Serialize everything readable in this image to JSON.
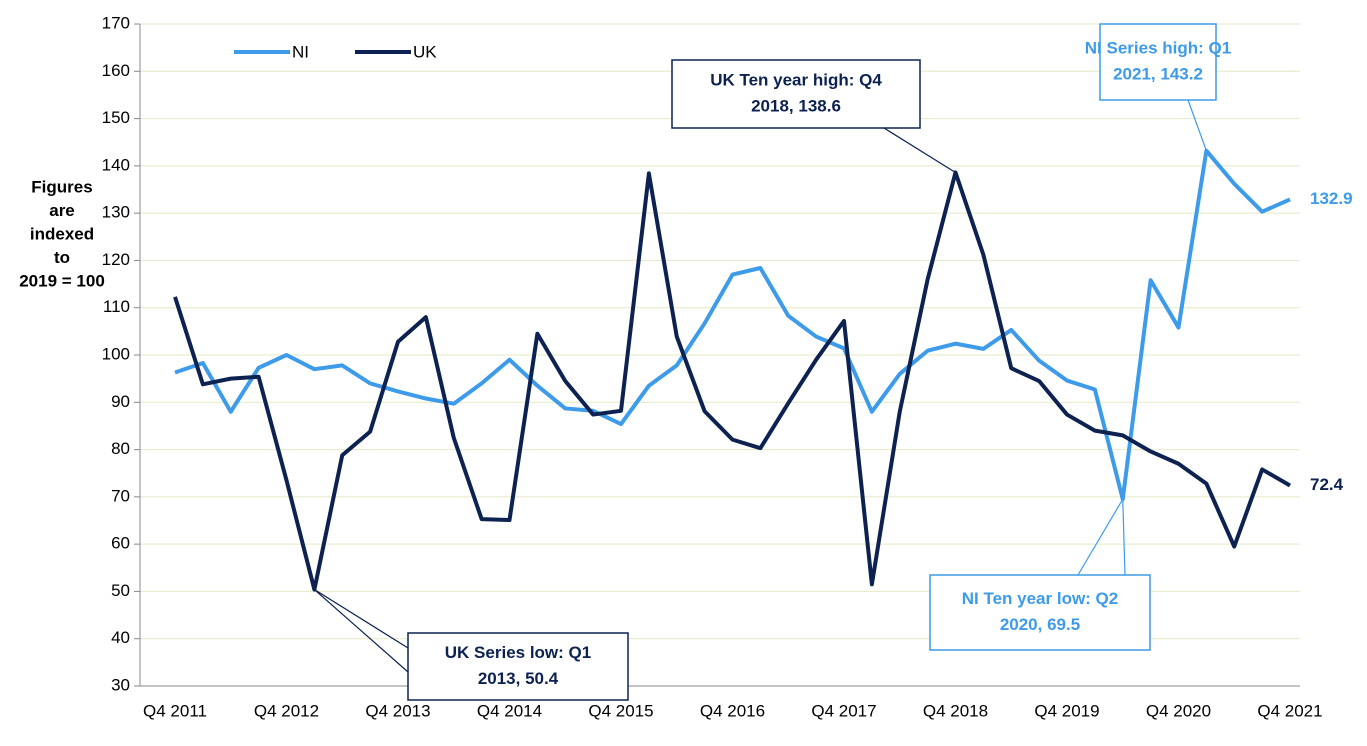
{
  "chart_data": {
    "type": "line",
    "y_label": [
      "Figures",
      "are",
      "indexed",
      "to",
      "2019 = 100"
    ],
    "categories": [
      "Q4 2011",
      null,
      null,
      null,
      "Q4 2012",
      null,
      null,
      null,
      "Q4 2013",
      null,
      null,
      null,
      "Q4 2014",
      null,
      null,
      null,
      "Q4 2015",
      null,
      null,
      null,
      "Q4 2016",
      null,
      null,
      null,
      "Q4 2017",
      null,
      null,
      null,
      "Q4 2018",
      null,
      null,
      null,
      "Q4 2019",
      null,
      null,
      null,
      "Q4 2020",
      null,
      null,
      null,
      "Q4 2021"
    ],
    "series": [
      {
        "name": "NI",
        "color": "#3d9be9",
        "values": [
          96.3,
          98.3,
          88,
          97.3,
          100,
          97,
          97.8,
          94,
          92.3,
          90.8,
          89.7,
          94,
          99,
          93.5,
          88.7,
          88.2,
          85.4,
          93.5,
          97.8,
          106.7,
          117,
          118.4,
          108.3,
          103.9,
          101.4,
          88,
          96,
          100.9,
          102.4,
          101.3,
          105.3,
          98.8,
          94.6,
          92.7,
          69.5,
          115.8,
          105.8,
          143.2,
          136.2,
          130.3,
          132.9
        ]
      },
      {
        "name": "UK",
        "color": "#0d2251",
        "values": [
          112.3,
          93.8,
          95,
          95.4,
          73.5,
          50.4,
          78.8,
          83.8,
          102.8,
          108,
          82.5,
          65.3,
          65.1,
          104.5,
          94.5,
          87.4,
          88.2,
          138.4,
          103.9,
          88.1,
          82.1,
          80.3,
          89.8,
          99,
          107.2,
          51.5,
          88,
          116,
          138.6,
          121.2,
          97.2,
          94.5,
          87.4,
          84,
          83,
          79.6,
          77,
          72.8,
          59.5,
          75.8,
          72.4
        ]
      }
    ],
    "ylim": [
      30,
      170
    ],
    "yticks": [
      30,
      40,
      50,
      60,
      70,
      80,
      90,
      100,
      110,
      120,
      130,
      140,
      150,
      160,
      170
    ],
    "grid": true,
    "legend": "upper left",
    "annotations": [
      {
        "text": [
          "UK Ten year high: Q4",
          "2018, 138.6"
        ],
        "color": "#0d2251"
      },
      {
        "text": [
          "NI Series high: Q1",
          "2021, 143.2"
        ],
        "color": "#3d9be9"
      },
      {
        "text": [
          "UK Series low: Q1",
          "2013, 50.4"
        ],
        "color": "#0d2251"
      },
      {
        "text": [
          "NI Ten year low: Q2",
          "2020, 69.5"
        ],
        "color": "#3d9be9"
      }
    ]
  }
}
